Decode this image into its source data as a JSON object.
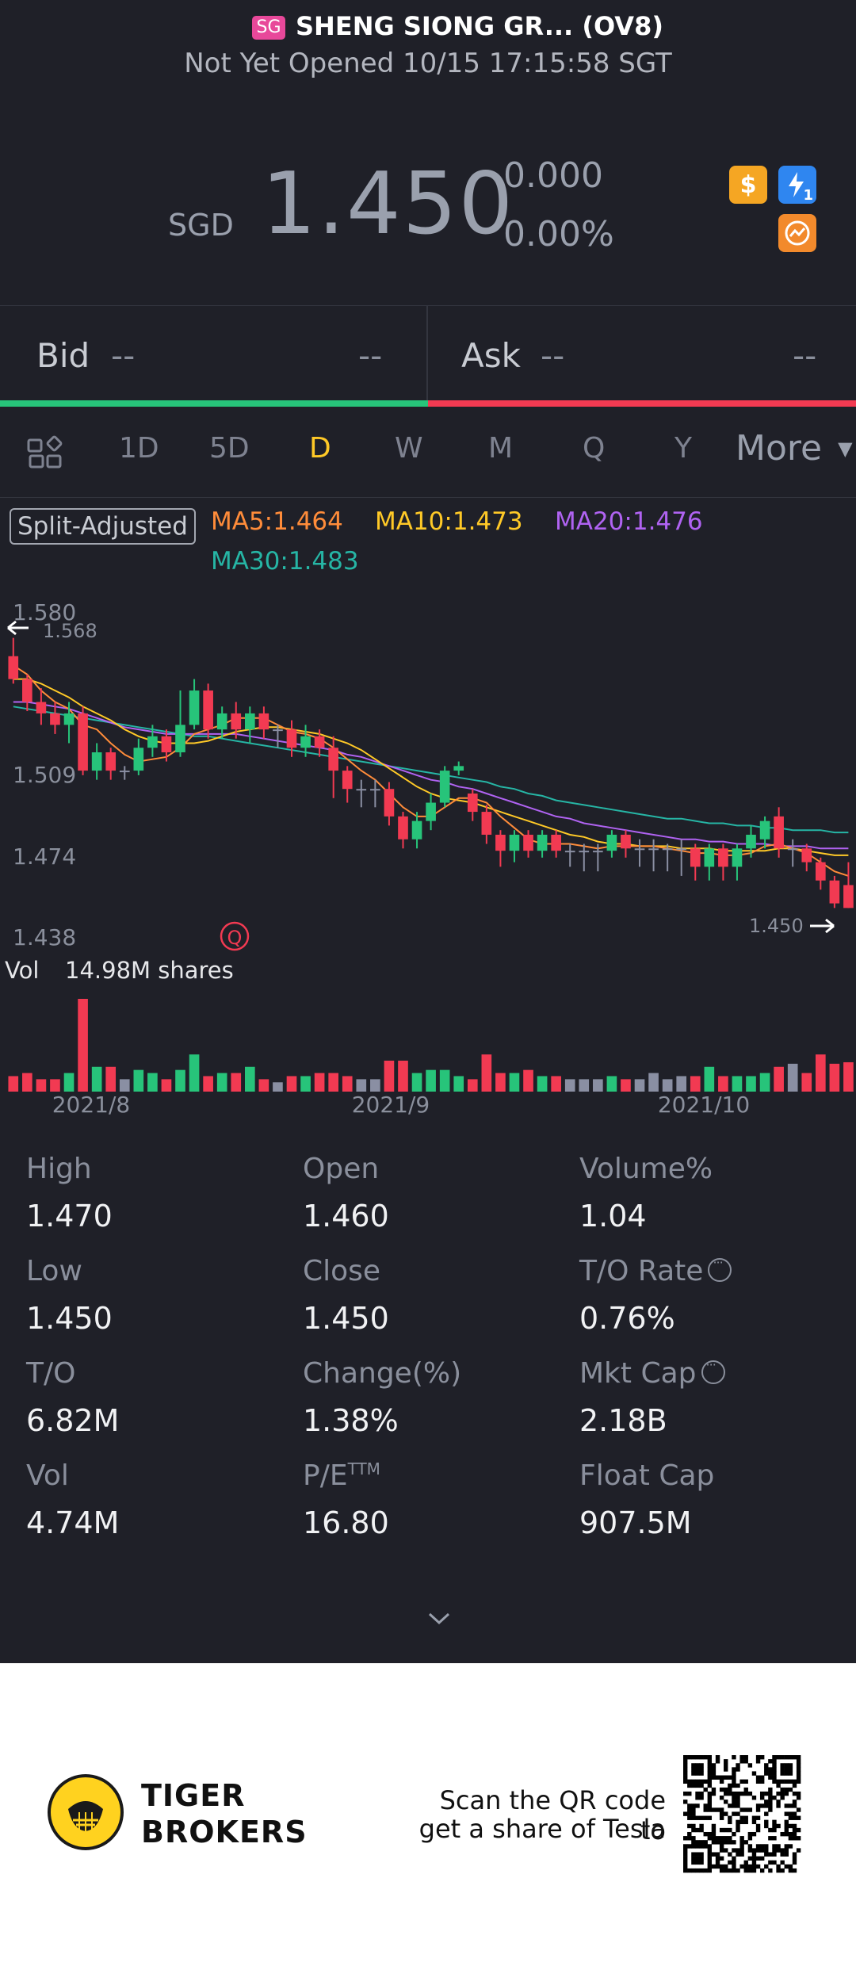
{
  "header": {
    "market_badge": "SG",
    "title": "SHENG SIONG GR... (OV8)",
    "status": "Not Yet Opened 10/15 17:15:58 SGT",
    "currency": "SGD",
    "price": "1.450",
    "change": "0.000",
    "change_pct": "0.00%",
    "icons": [
      "dollar-badge-icon",
      "lightning-badge-icon",
      "chart-badge-icon"
    ],
    "flash_badge_count": "1"
  },
  "quote": {
    "bid_label": "Bid",
    "bid_price": "--",
    "bid_size": "--",
    "ask_label": "Ask",
    "ask_price": "--",
    "ask_size": "--",
    "bid_ratio": 0.5
  },
  "tabs": {
    "items": [
      "1D",
      "5D",
      "D",
      "W",
      "M",
      "Q",
      "Y"
    ],
    "active": "D",
    "more": "More"
  },
  "legend": {
    "split_adjusted": "Split-Adjusted",
    "ma5": "MA5:1.464",
    "ma10": "MA10:1.473",
    "ma20": "MA20:1.476",
    "ma30": "MA30:1.483"
  },
  "colors": {
    "up": "#27c47a",
    "down": "#f23a52",
    "flat": "#8a8fa3",
    "ma5": "#ff8c3a",
    "ma10": "#ffc927",
    "ma20": "#b063f2",
    "ma30": "#26b5a5",
    "accent": "#ffc927",
    "background": "#1f2028"
  },
  "chart_data": {
    "type": "candlestick",
    "y_ticks": [
      "1.580",
      "1.509",
      "1.474",
      "1.438"
    ],
    "ylim": [
      1.438,
      1.58
    ],
    "high_marker": "1.568",
    "last_marker": "1.450",
    "x_ticks": [
      "2021/8",
      "2021/9",
      "2021/10"
    ],
    "volume_label": "Vol",
    "volume_value": "14.98M shares",
    "quarter_marker": "Q",
    "candles": [
      {
        "o": 1.56,
        "c": 1.55,
        "h": 1.568,
        "l": 1.548,
        "v": 2.5
      },
      {
        "o": 1.55,
        "c": 1.54,
        "h": 1.552,
        "l": 1.536,
        "v": 3
      },
      {
        "o": 1.54,
        "c": 1.535,
        "h": 1.546,
        "l": 1.53,
        "v": 2
      },
      {
        "o": 1.535,
        "c": 1.53,
        "h": 1.54,
        "l": 1.526,
        "v": 2
      },
      {
        "o": 1.53,
        "c": 1.535,
        "h": 1.54,
        "l": 1.522,
        "v": 3
      },
      {
        "o": 1.535,
        "c": 1.51,
        "h": 1.538,
        "l": 1.508,
        "v": 14.98
      },
      {
        "o": 1.51,
        "c": 1.518,
        "h": 1.522,
        "l": 1.506,
        "v": 4
      },
      {
        "o": 1.518,
        "c": 1.51,
        "h": 1.52,
        "l": 1.506,
        "v": 4
      },
      {
        "o": 1.51,
        "c": 1.51,
        "h": 1.512,
        "l": 1.506,
        "v": 2
      },
      {
        "o": 1.51,
        "c": 1.52,
        "h": 1.524,
        "l": 1.508,
        "v": 3.5
      },
      {
        "o": 1.52,
        "c": 1.525,
        "h": 1.53,
        "l": 1.516,
        "v": 3
      },
      {
        "o": 1.525,
        "c": 1.518,
        "h": 1.528,
        "l": 1.514,
        "v": 2
      },
      {
        "o": 1.518,
        "c": 1.53,
        "h": 1.545,
        "l": 1.516,
        "v": 3.5
      },
      {
        "o": 1.53,
        "c": 1.545,
        "h": 1.55,
        "l": 1.528,
        "v": 6
      },
      {
        "o": 1.545,
        "c": 1.528,
        "h": 1.548,
        "l": 1.524,
        "v": 2.5
      },
      {
        "o": 1.528,
        "c": 1.535,
        "h": 1.538,
        "l": 1.524,
        "v": 3
      },
      {
        "o": 1.535,
        "c": 1.528,
        "h": 1.54,
        "l": 1.524,
        "v": 3
      },
      {
        "o": 1.528,
        "c": 1.535,
        "h": 1.538,
        "l": 1.522,
        "v": 4
      },
      {
        "o": 1.535,
        "c": 1.528,
        "h": 1.538,
        "l": 1.524,
        "v": 2
      },
      {
        "o": 1.528,
        "c": 1.528,
        "h": 1.53,
        "l": 1.52,
        "v": 1.5
      },
      {
        "o": 1.528,
        "c": 1.52,
        "h": 1.532,
        "l": 1.516,
        "v": 2.5
      },
      {
        "o": 1.52,
        "c": 1.525,
        "h": 1.53,
        "l": 1.516,
        "v": 2.5
      },
      {
        "o": 1.525,
        "c": 1.52,
        "h": 1.528,
        "l": 1.516,
        "v": 3
      },
      {
        "o": 1.52,
        "c": 1.51,
        "h": 1.525,
        "l": 1.498,
        "v": 3
      },
      {
        "o": 1.51,
        "c": 1.502,
        "h": 1.512,
        "l": 1.496,
        "v": 2.5
      },
      {
        "o": 1.502,
        "c": 1.502,
        "h": 1.506,
        "l": 1.494,
        "v": 2
      },
      {
        "o": 1.502,
        "c": 1.502,
        "h": 1.506,
        "l": 1.494,
        "v": 2
      },
      {
        "o": 1.502,
        "c": 1.49,
        "h": 1.505,
        "l": 1.486,
        "v": 5
      },
      {
        "o": 1.49,
        "c": 1.48,
        "h": 1.492,
        "l": 1.476,
        "v": 5
      },
      {
        "o": 1.48,
        "c": 1.488,
        "h": 1.492,
        "l": 1.476,
        "v": 3
      },
      {
        "o": 1.488,
        "c": 1.496,
        "h": 1.5,
        "l": 1.484,
        "v": 3.5
      },
      {
        "o": 1.496,
        "c": 1.51,
        "h": 1.512,
        "l": 1.494,
        "v": 3.5
      },
      {
        "o": 1.51,
        "c": 1.512,
        "h": 1.514,
        "l": 1.508,
        "v": 2.5
      },
      {
        "o": 1.5,
        "c": 1.492,
        "h": 1.502,
        "l": 1.488,
        "v": 2
      },
      {
        "o": 1.492,
        "c": 1.482,
        "h": 1.495,
        "l": 1.478,
        "v": 6
      },
      {
        "o": 1.482,
        "c": 1.475,
        "h": 1.484,
        "l": 1.468,
        "v": 3
      },
      {
        "o": 1.475,
        "c": 1.482,
        "h": 1.484,
        "l": 1.47,
        "v": 3
      },
      {
        "o": 1.482,
        "c": 1.475,
        "h": 1.484,
        "l": 1.472,
        "v": 3.5
      },
      {
        "o": 1.475,
        "c": 1.482,
        "h": 1.484,
        "l": 1.472,
        "v": 2.5
      },
      {
        "o": 1.482,
        "c": 1.475,
        "h": 1.484,
        "l": 1.472,
        "v": 2.5
      },
      {
        "o": 1.475,
        "c": 1.475,
        "h": 1.478,
        "l": 1.468,
        "v": 2
      },
      {
        "o": 1.475,
        "c": 1.475,
        "h": 1.478,
        "l": 1.466,
        "v": 2
      },
      {
        "o": 1.475,
        "c": 1.475,
        "h": 1.478,
        "l": 1.466,
        "v": 2
      },
      {
        "o": 1.475,
        "c": 1.482,
        "h": 1.484,
        "l": 1.472,
        "v": 2.5
      },
      {
        "o": 1.482,
        "c": 1.476,
        "h": 1.484,
        "l": 1.472,
        "v": 2
      },
      {
        "o": 1.476,
        "c": 1.476,
        "h": 1.48,
        "l": 1.468,
        "v": 2
      },
      {
        "o": 1.476,
        "c": 1.476,
        "h": 1.48,
        "l": 1.466,
        "v": 3
      },
      {
        "o": 1.476,
        "c": 1.476,
        "h": 1.478,
        "l": 1.466,
        "v": 2
      },
      {
        "o": 1.476,
        "c": 1.476,
        "h": 1.48,
        "l": 1.464,
        "v": 2.5
      },
      {
        "o": 1.476,
        "c": 1.468,
        "h": 1.478,
        "l": 1.462,
        "v": 2.5
      },
      {
        "o": 1.468,
        "c": 1.476,
        "h": 1.478,
        "l": 1.462,
        "v": 4
      },
      {
        "o": 1.476,
        "c": 1.468,
        "h": 1.478,
        "l": 1.462,
        "v": 2.5
      },
      {
        "o": 1.468,
        "c": 1.476,
        "h": 1.478,
        "l": 1.462,
        "v": 2.5
      },
      {
        "o": 1.476,
        "c": 1.482,
        "h": 1.486,
        "l": 1.472,
        "v": 2.5
      },
      {
        "o": 1.48,
        "c": 1.488,
        "h": 1.49,
        "l": 1.476,
        "v": 3
      },
      {
        "o": 1.49,
        "c": 1.476,
        "h": 1.494,
        "l": 1.472,
        "v": 4
      },
      {
        "o": 1.476,
        "c": 1.476,
        "h": 1.48,
        "l": 1.468,
        "v": 4.5
      },
      {
        "o": 1.476,
        "c": 1.47,
        "h": 1.478,
        "l": 1.466,
        "v": 3
      },
      {
        "o": 1.47,
        "c": 1.462,
        "h": 1.472,
        "l": 1.458,
        "v": 6
      },
      {
        "o": 1.462,
        "c": 1.452,
        "h": 1.464,
        "l": 1.45,
        "v": 4.5
      },
      {
        "o": 1.46,
        "c": 1.45,
        "h": 1.47,
        "l": 1.45,
        "v": 4.74
      }
    ],
    "ma5": [
      1.556,
      1.552,
      1.545,
      1.54,
      1.537,
      1.53,
      1.528,
      1.522,
      1.517,
      1.514,
      1.515,
      1.516,
      1.52,
      1.526,
      1.528,
      1.53,
      1.533,
      1.533,
      1.533,
      1.53,
      1.527,
      1.526,
      1.524,
      1.52,
      1.515,
      1.51,
      1.506,
      1.5,
      1.494,
      1.49,
      1.49,
      1.494,
      1.498,
      1.498,
      1.496,
      1.49,
      1.485,
      1.48,
      1.478,
      1.478,
      1.478,
      1.477,
      1.476,
      1.477,
      1.477,
      1.477,
      1.477,
      1.476,
      1.475,
      1.474,
      1.474,
      1.473,
      1.473,
      1.474,
      1.477,
      1.478,
      1.476,
      1.474,
      1.47,
      1.466,
      1.464
    ],
    "ma10": [
      1.55,
      1.55,
      1.548,
      1.545,
      1.542,
      1.538,
      1.535,
      1.532,
      1.528,
      1.525,
      1.523,
      1.522,
      1.522,
      1.522,
      1.523,
      1.525,
      1.527,
      1.528,
      1.529,
      1.529,
      1.528,
      1.527,
      1.526,
      1.524,
      1.522,
      1.519,
      1.515,
      1.511,
      1.507,
      1.503,
      1.5,
      1.498,
      1.497,
      1.496,
      1.494,
      1.492,
      1.49,
      1.488,
      1.486,
      1.484,
      1.482,
      1.481,
      1.479,
      1.478,
      1.478,
      1.477,
      1.477,
      1.477,
      1.476,
      1.476,
      1.476,
      1.475,
      1.475,
      1.475,
      1.475,
      1.476,
      1.476,
      1.475,
      1.474,
      1.473,
      1.473
    ],
    "ma20": [
      1.54,
      1.54,
      1.539,
      1.538,
      1.537,
      1.535,
      1.533,
      1.531,
      1.529,
      1.528,
      1.527,
      1.526,
      1.526,
      1.526,
      1.526,
      1.526,
      1.526,
      1.525,
      1.524,
      1.523,
      1.522,
      1.521,
      1.52,
      1.519,
      1.517,
      1.516,
      1.514,
      1.512,
      1.51,
      1.508,
      1.506,
      1.505,
      1.503,
      1.502,
      1.5,
      1.498,
      1.496,
      1.494,
      1.492,
      1.49,
      1.489,
      1.487,
      1.486,
      1.485,
      1.484,
      1.483,
      1.482,
      1.481,
      1.48,
      1.48,
      1.479,
      1.479,
      1.478,
      1.478,
      1.478,
      1.477,
      1.477,
      1.477,
      1.476,
      1.476,
      1.476
    ],
    "ma30": [
      1.538,
      1.537,
      1.536,
      1.535,
      1.534,
      1.533,
      1.532,
      1.531,
      1.53,
      1.529,
      1.528,
      1.527,
      1.526,
      1.525,
      1.525,
      1.524,
      1.523,
      1.522,
      1.521,
      1.52,
      1.519,
      1.518,
      1.517,
      1.516,
      1.515,
      1.514,
      1.513,
      1.512,
      1.511,
      1.51,
      1.509,
      1.508,
      1.507,
      1.506,
      1.505,
      1.503,
      1.502,
      1.5,
      1.499,
      1.497,
      1.496,
      1.495,
      1.494,
      1.493,
      1.492,
      1.491,
      1.49,
      1.489,
      1.489,
      1.488,
      1.487,
      1.487,
      1.486,
      1.486,
      1.485,
      1.485,
      1.484,
      1.484,
      1.484,
      1.483,
      1.483
    ]
  },
  "stats": {
    "high_label": "High",
    "high": "1.470",
    "open_label": "Open",
    "open": "1.460",
    "volpct_label": "Volume%",
    "volpct": "1.04",
    "low_label": "Low",
    "low": "1.450",
    "close_label": "Close",
    "close": "1.450",
    "to_rate_label": "T/O Rate",
    "to_rate": "0.76%",
    "to_label": "T/O",
    "to": "6.82M",
    "chg_label": "Change(%)",
    "chg": "1.38%",
    "mktcap_label": "Mkt Cap",
    "mktcap": "2.18B",
    "vol_label": "Vol",
    "vol": "4.74M",
    "pe_label": "P/E",
    "pe_sup": "TTM",
    "pe": "16.80",
    "float_label": "Float Cap",
    "float": "907.5M"
  },
  "footer": {
    "brand_line1": "TIGER",
    "brand_line2": "BROKERS",
    "promo_line1": "Scan the QR code to",
    "promo_line2": "get a share of Tesla"
  }
}
